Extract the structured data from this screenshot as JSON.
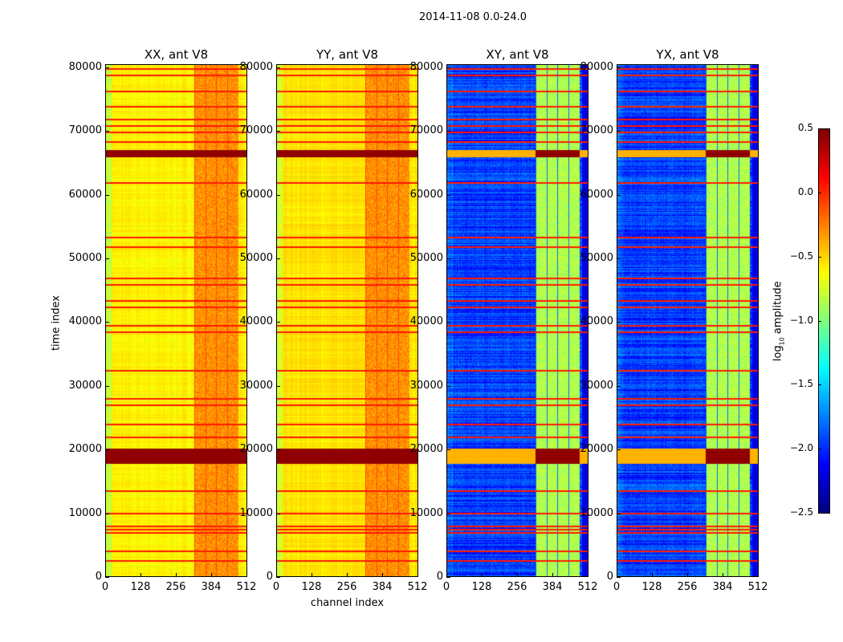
{
  "chart_data": {
    "type": "heatmap",
    "title": "2014-11-08 0.0-24.0",
    "xlabel": "channel index",
    "ylabel": "time index",
    "xlim": [
      0,
      512
    ],
    "ylim": [
      0,
      80500
    ],
    "xticks": [
      "0",
      "128",
      "256",
      "384",
      "512"
    ],
    "xtick_values": [
      0,
      128,
      256,
      384,
      512
    ],
    "yticks": [
      "0",
      "10000",
      "20000",
      "30000",
      "40000",
      "50000",
      "60000",
      "70000",
      "80000"
    ],
    "ytick_values": [
      0,
      10000,
      20000,
      30000,
      40000,
      50000,
      60000,
      70000,
      80000
    ],
    "panels": [
      {
        "title": "XX, ant V8",
        "base_log_amp": -0.6,
        "rfi_band_log_amp": -0.3
      },
      {
        "title": "YY, ant V8",
        "base_log_amp": -0.55,
        "rfi_band_log_amp": -0.3
      },
      {
        "title": "XY, ant V8",
        "base_log_amp": -1.95,
        "rfi_band_log_amp": -0.85
      },
      {
        "title": "YX, ant V8",
        "base_log_amp": -1.95,
        "rfi_band_log_amp": -0.85
      }
    ],
    "rfi_channel_range": [
      320,
      480
    ],
    "flagged_time_rows": [
      80000,
      79000,
      76500,
      74000,
      72000,
      71000,
      70000,
      68500,
      62000,
      53500,
      52000,
      47000,
      46000,
      43500,
      42500,
      39500,
      38500,
      32500,
      28000,
      27000,
      24000,
      22000,
      13500,
      10000,
      8000,
      7500,
      7000,
      4000,
      2500
    ],
    "strong_time_ranges": [
      [
        66000,
        67200
      ],
      [
        17800,
        20200
      ]
    ],
    "colorbar": {
      "label": "log10 amplitude",
      "range": [
        -2.5,
        0.5
      ],
      "ticks": [
        "0.5",
        "0.0",
        "−0.5",
        "−1.0",
        "−1.5",
        "−2.0",
        "−2.5"
      ],
      "tick_values": [
        0.5,
        0.0,
        -0.5,
        -1.0,
        -1.5,
        -2.0,
        -2.5
      ],
      "colormap": "jet"
    }
  }
}
